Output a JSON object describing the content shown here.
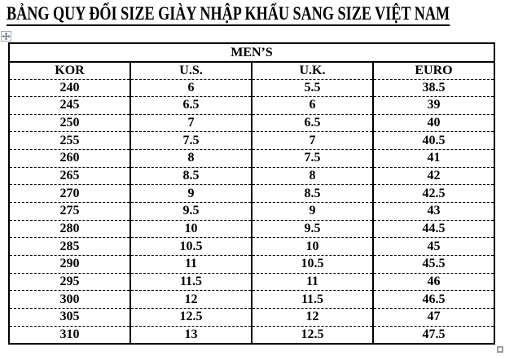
{
  "title": "BẢNG QUY ĐỔI SIZE GIÀY NHẬP KHẨU SANG SIZE VIỆT NAM",
  "table": {
    "group_header": "MEN’S",
    "columns": [
      "KOR",
      "U.S.",
      "U.K.",
      "EURO"
    ],
    "rows": [
      [
        "240",
        "6",
        "5.5",
        "38.5"
      ],
      [
        "245",
        "6.5",
        "6",
        "39"
      ],
      [
        "250",
        "7",
        "6.5",
        "40"
      ],
      [
        "255",
        "7.5",
        "7",
        "40.5"
      ],
      [
        "260",
        "8",
        "7.5",
        "41"
      ],
      [
        "265",
        "8.5",
        "8",
        "42"
      ],
      [
        "270",
        "9",
        "8.5",
        "42.5"
      ],
      [
        "275",
        "9.5",
        "9",
        "43"
      ],
      [
        "280",
        "10",
        "9.5",
        "44.5"
      ],
      [
        "285",
        "10.5",
        "10",
        "45"
      ],
      [
        "290",
        "11",
        "10.5",
        "45.5"
      ],
      [
        "295",
        "11.5",
        "11",
        "46"
      ],
      [
        "300",
        "12",
        "11.5",
        "46.5"
      ],
      [
        "305",
        "12.5",
        "12",
        "47"
      ],
      [
        "310",
        "13",
        "12.5",
        "47.5"
      ]
    ]
  },
  "icons": {
    "move_anchor": "table-move-anchor",
    "resize_handle": "table-resize-handle"
  },
  "colors": {
    "text": "#000000",
    "table_border": "#000000",
    "handle_border": "#9e9e9e",
    "anchor_arrow": "#5a7396",
    "background": "#ffffff"
  }
}
